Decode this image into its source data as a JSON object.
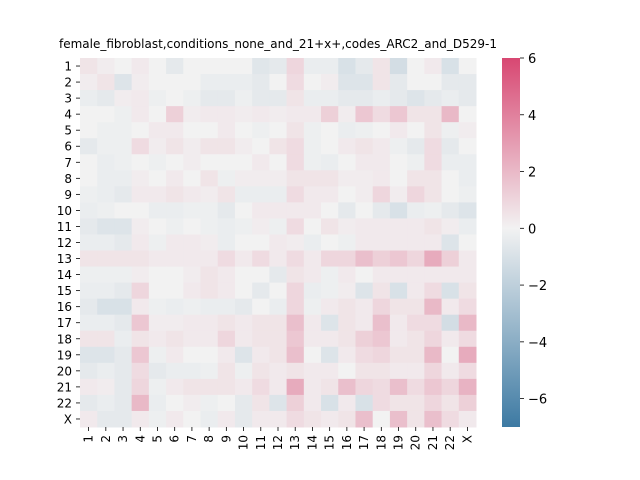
{
  "chart_data": {
    "type": "heatmap",
    "title": "female_fibroblast,conditions_none_and_21+x+,codes_ARC2_and_D529-1",
    "xlabel": "",
    "ylabel": "",
    "x_labels": [
      "1",
      "2",
      "3",
      "4",
      "5",
      "6",
      "7",
      "8",
      "9",
      "10",
      "11",
      "12",
      "13",
      "14",
      "15",
      "16",
      "17",
      "18",
      "19",
      "20",
      "21",
      "22",
      "X"
    ],
    "y_labels": [
      "1",
      "2",
      "3",
      "4",
      "5",
      "6",
      "7",
      "8",
      "9",
      "10",
      "11",
      "12",
      "13",
      "14",
      "15",
      "16",
      "17",
      "18",
      "19",
      "20",
      "21",
      "22",
      "X"
    ],
    "vmin": -7,
    "vmax": 6,
    "colorbar_ticks": [
      6,
      4,
      2,
      0,
      -2,
      -4,
      -6
    ],
    "colorbar_tick_labels": [
      "6",
      "4",
      "2",
      "0",
      "−2",
      "−4",
      "−6"
    ],
    "colormap": {
      "low": "#3d7aa3",
      "mid": "#f2f2f2",
      "high": "#d84772"
    },
    "values": [
      [
        0.5,
        0.2,
        0.0,
        0.3,
        0.0,
        -0.5,
        0.0,
        0.0,
        0.0,
        0.0,
        -0.7,
        -0.5,
        1.0,
        -0.3,
        -0.3,
        -1.0,
        -0.5,
        0.5,
        -1.2,
        0.0,
        0.3,
        -1.0,
        0.0
      ],
      [
        0.2,
        0.5,
        -0.8,
        0.2,
        0.0,
        0.0,
        0.0,
        -0.3,
        -0.3,
        -0.3,
        -0.5,
        0.0,
        0.8,
        0.0,
        0.2,
        -0.8,
        -0.8,
        0.5,
        -0.5,
        0.0,
        0.0,
        -0.5,
        -0.5
      ],
      [
        -0.3,
        -0.5,
        0.2,
        0.3,
        -0.2,
        0.0,
        -0.2,
        -0.5,
        -0.5,
        -0.2,
        -0.5,
        -0.5,
        0.5,
        -0.3,
        -0.3,
        -0.5,
        -0.5,
        -0.3,
        -0.5,
        -0.8,
        -0.5,
        -0.3,
        -0.5
      ],
      [
        0.0,
        0.0,
        -0.2,
        0.3,
        0.0,
        1.2,
        0.2,
        0.3,
        0.3,
        0.2,
        0.3,
        0.2,
        0.3,
        0.3,
        1.2,
        0.2,
        1.5,
        0.8,
        1.5,
        0.5,
        0.5,
        2.0,
        0.0
      ],
      [
        0.0,
        -0.2,
        -0.2,
        0.0,
        0.3,
        0.3,
        0.0,
        0.0,
        0.3,
        0.0,
        -0.2,
        0.0,
        0.5,
        -0.2,
        0.0,
        -0.3,
        -0.2,
        0.0,
        0.3,
        0.0,
        0.5,
        -0.2,
        0.2
      ],
      [
        -0.5,
        -0.2,
        -0.2,
        0.8,
        0.2,
        0.5,
        0.2,
        0.5,
        0.5,
        0.2,
        0.0,
        0.5,
        0.8,
        -0.2,
        0.0,
        0.3,
        0.5,
        0.3,
        -0.2,
        -0.5,
        0.8,
        -0.5,
        0.0
      ],
      [
        0.0,
        -0.3,
        -0.2,
        0.0,
        -0.2,
        0.0,
        0.2,
        0.0,
        0.0,
        0.0,
        0.3,
        0.0,
        0.8,
        -0.2,
        -0.3,
        0.0,
        0.3,
        0.3,
        0.0,
        -0.2,
        0.8,
        -0.3,
        -0.3
      ],
      [
        0.0,
        -0.3,
        -0.3,
        0.2,
        0.0,
        0.3,
        0.0,
        0.5,
        -0.2,
        0.2,
        0.2,
        0.2,
        0.5,
        0.5,
        0.5,
        0.2,
        0.2,
        0.3,
        0.0,
        0.5,
        0.5,
        0.0,
        -0.3
      ],
      [
        -0.2,
        -0.3,
        -0.5,
        0.3,
        0.3,
        0.5,
        0.3,
        0.2,
        0.5,
        -0.3,
        -0.3,
        -0.3,
        0.8,
        0.3,
        0.3,
        0.0,
        0.2,
        1.0,
        0.2,
        1.0,
        0.5,
        0.0,
        -0.2
      ],
      [
        -0.3,
        -0.2,
        0.0,
        0.0,
        -0.3,
        -0.3,
        -0.2,
        -0.2,
        -0.5,
        0.0,
        0.3,
        0.3,
        0.3,
        0.3,
        0.0,
        -0.5,
        0.0,
        -0.5,
        -1.0,
        -0.3,
        -0.2,
        -0.5,
        -0.8
      ],
      [
        -0.5,
        -0.8,
        -0.8,
        0.2,
        0.0,
        -0.2,
        0.0,
        -0.2,
        -0.3,
        -0.2,
        0.2,
        -0.2,
        0.8,
        0.0,
        0.5,
        0.2,
        0.3,
        0.3,
        0.3,
        0.3,
        0.5,
        0.2,
        -0.3
      ],
      [
        -0.3,
        -0.3,
        -0.5,
        0.3,
        -0.2,
        0.3,
        0.3,
        0.2,
        -0.3,
        0.0,
        0.0,
        0.3,
        0.2,
        -0.3,
        0.0,
        -0.2,
        0.3,
        0.3,
        0.3,
        0.3,
        0.3,
        -0.8,
        0.0
      ],
      [
        0.5,
        0.5,
        0.5,
        0.5,
        0.3,
        0.3,
        0.3,
        0.3,
        0.8,
        0.3,
        0.8,
        0.3,
        0.8,
        0.3,
        1.0,
        1.0,
        1.8,
        1.2,
        1.5,
        1.0,
        2.5,
        1.2,
        0.3
      ],
      [
        -0.2,
        -0.2,
        -0.2,
        0.2,
        0.0,
        0.0,
        0.2,
        0.5,
        0.3,
        0.0,
        0.0,
        -0.5,
        0.5,
        0.3,
        -0.2,
        0.3,
        0.0,
        0.3,
        0.3,
        0.3,
        0.3,
        0.3,
        0.3
      ],
      [
        -0.3,
        -0.3,
        -0.5,
        1.0,
        0.0,
        0.0,
        0.3,
        0.5,
        0.3,
        0.0,
        -0.5,
        0.0,
        1.0,
        -0.3,
        -0.2,
        0.2,
        -0.8,
        0.5,
        -1.0,
        0.3,
        0.8,
        -1.0,
        0.5
      ],
      [
        -0.5,
        -1.0,
        -1.0,
        0.3,
        -0.2,
        -0.3,
        -0.2,
        -0.3,
        -0.3,
        -0.5,
        0.0,
        -0.3,
        1.0,
        -0.2,
        0.3,
        0.5,
        0.3,
        1.0,
        0.5,
        0.5,
        2.0,
        0.3,
        0.8
      ],
      [
        -0.3,
        -0.3,
        -0.5,
        1.5,
        0.2,
        0.2,
        0.3,
        0.3,
        0.5,
        0.3,
        0.5,
        0.5,
        1.8,
        0.3,
        -0.8,
        0.5,
        0.3,
        1.8,
        0.3,
        0.8,
        0.8,
        -1.2,
        2.0
      ],
      [
        0.5,
        0.5,
        -0.3,
        0.5,
        0.3,
        0.5,
        0.3,
        0.3,
        1.0,
        0.3,
        0.5,
        0.5,
        1.5,
        0.3,
        0.3,
        0.5,
        1.2,
        1.5,
        0.3,
        0.5,
        1.0,
        0.3,
        0.8
      ],
      [
        -0.8,
        -0.8,
        -0.5,
        1.5,
        -0.2,
        0.3,
        0.0,
        0.0,
        0.3,
        -0.8,
        0.3,
        0.5,
        1.8,
        0.0,
        -0.8,
        0.3,
        0.8,
        1.0,
        0.5,
        0.5,
        2.0,
        0.0,
        2.5
      ],
      [
        -0.5,
        -0.3,
        -0.5,
        0.8,
        -0.5,
        -0.3,
        -0.3,
        -0.2,
        0.5,
        -0.2,
        0.5,
        0.3,
        0.5,
        0.3,
        0.3,
        0.0,
        0.5,
        0.5,
        0.3,
        0.3,
        1.0,
        0.3,
        0.8
      ],
      [
        0.3,
        0.2,
        -0.5,
        1.0,
        -0.2,
        0.3,
        0.5,
        0.5,
        0.5,
        0.3,
        0.8,
        0.3,
        2.5,
        0.3,
        0.5,
        1.8,
        1.0,
        0.8,
        1.8,
        0.8,
        1.5,
        1.0,
        2.2
      ],
      [
        -0.5,
        -0.3,
        -0.5,
        2.0,
        -0.3,
        0.0,
        0.2,
        -0.2,
        0.0,
        -0.5,
        0.5,
        -0.8,
        1.2,
        0.3,
        -1.0,
        0.3,
        -1.0,
        0.8,
        0.5,
        0.5,
        1.0,
        0.5,
        1.2
      ],
      [
        0.3,
        -0.5,
        -0.5,
        0.3,
        -0.2,
        0.3,
        0.0,
        -0.3,
        0.3,
        -0.5,
        0.3,
        0.3,
        0.8,
        0.5,
        0.3,
        0.5,
        1.8,
        0.0,
        1.8,
        0.5,
        1.8,
        0.8,
        0.3
      ]
    ]
  }
}
